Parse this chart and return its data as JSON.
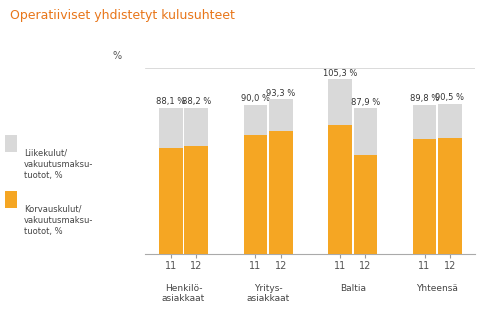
{
  "title": "Operatiiviset yhdistetyt kulusuhteet",
  "ylabel": "%",
  "groups": [
    "Henkilö-\nasiakkaat",
    "Yritys-\nasiakkaat",
    "Baltia",
    "Yhteensä"
  ],
  "years": [
    "11",
    "12"
  ],
  "orange_values": [
    64.0,
    65.0,
    72.0,
    74.0,
    78.0,
    59.5,
    69.5,
    70.0
  ],
  "gray_values": [
    24.1,
    23.2,
    18.0,
    19.3,
    27.3,
    28.4,
    20.3,
    20.5
  ],
  "totals": [
    "88,1 %",
    "88,2 %",
    "90,0 %",
    "93,3 %",
    "105,3 %",
    "87,9 %",
    "89,8 %",
    "90,5 %"
  ],
  "bar_color_orange": "#F5A623",
  "bar_color_gray": "#D9D9D9",
  "title_color": "#E8761A",
  "legend_gray_label": "Liikekulut/\nvakuutusmaksu-\ntuotot, %",
  "legend_orange_label": "Korvauskulut/\nvakuutusmaksu-\ntuotot, %",
  "ylim_max": 112,
  "background_color": "#FFFFFF",
  "bar_width": 0.28,
  "group_centers": [
    1.0,
    2.0,
    3.0,
    4.0
  ]
}
